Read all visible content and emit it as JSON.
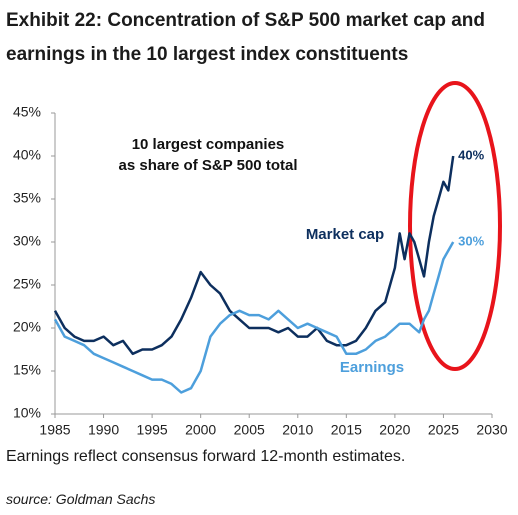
{
  "chart_data": {
    "type": "line",
    "title": "Exhibit 22: Concentration of S&P 500 market cap and earnings in the 10 largest index constituents",
    "annotation": [
      "10 largest companies",
      "as share of S&P 500 total"
    ],
    "footnote": "Earnings reflect consensus forward 12-month estimates.",
    "source": "source: Goldman Sachs",
    "x": [
      1985,
      1986,
      1987,
      1988,
      1989,
      1990,
      1991,
      1992,
      1993,
      1994,
      1995,
      1996,
      1997,
      1998,
      1999,
      2000,
      2001,
      2002,
      2003,
      2004,
      2005,
      2006,
      2007,
      2008,
      2009,
      2010,
      2011,
      2012,
      2013,
      2014,
      2015,
      2016,
      2017,
      2018,
      2019,
      2020,
      2020.5,
      2021,
      2021.5,
      2022,
      2022.5,
      2023,
      2023.5,
      2024,
      2024.5,
      2025,
      2025.5,
      2026
    ],
    "series": [
      {
        "name": "Market cap",
        "color": "#0d2f5e",
        "end_label": "40%",
        "values": [
          22,
          20,
          19,
          18.5,
          18.5,
          19,
          18,
          18.5,
          17,
          17.5,
          17.5,
          18,
          19,
          21,
          23.5,
          26.5,
          25,
          24,
          22,
          21,
          20,
          20,
          20,
          19.5,
          20,
          19,
          19,
          20,
          18.5,
          18,
          18,
          18.5,
          20,
          22,
          23,
          27,
          31,
          28,
          31,
          30,
          28,
          26,
          30,
          33,
          35,
          37,
          36,
          40
        ]
      },
      {
        "name": "Earnings",
        "color": "#4d9fdc",
        "end_label": "30%",
        "values": [
          21,
          19,
          18.5,
          18,
          17,
          16.5,
          16,
          15.5,
          15,
          14.5,
          14,
          14,
          13.5,
          12.5,
          13,
          15,
          19,
          20.5,
          21.5,
          22,
          21.5,
          21.5,
          21,
          22,
          21,
          20,
          20.5,
          20,
          19.5,
          19,
          17,
          17,
          17.5,
          18.5,
          19,
          20,
          20.5,
          20.5,
          20.5,
          20,
          19.5,
          21,
          22,
          24,
          26,
          28,
          29,
          30
        ]
      }
    ],
    "xlim": [
      1985,
      2030
    ],
    "xticks": [
      1985,
      1990,
      1995,
      2000,
      2005,
      2010,
      2015,
      2020,
      2025,
      2030
    ],
    "ylim": [
      10,
      45
    ],
    "yticks": [
      {
        "value": 10,
        "label": "10%"
      },
      {
        "value": 15,
        "label": "15%"
      },
      {
        "value": 20,
        "label": "20%"
      },
      {
        "value": 25,
        "label": "25%"
      },
      {
        "value": 30,
        "label": "30%"
      },
      {
        "value": 35,
        "label": "35%"
      },
      {
        "value": 40,
        "label": "40%"
      },
      {
        "value": 45,
        "label": "45%"
      }
    ],
    "grid": false
  }
}
